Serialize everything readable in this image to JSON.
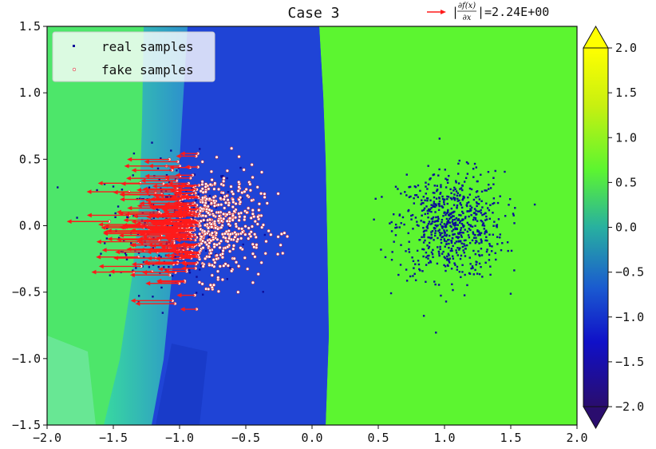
{
  "chart_data": {
    "type": "scatter",
    "title": "Case 3",
    "xlim": [
      -2.0,
      2.0
    ],
    "ylim": [
      -1.5,
      1.5
    ],
    "x_ticks": [
      "−2.0",
      "−1.5",
      "−1.0",
      "−0.5",
      "0.0",
      "0.5",
      "1.0",
      "1.5",
      "2.0"
    ],
    "x_tick_values": [
      -2.0,
      -1.5,
      -1.0,
      -0.5,
      0.0,
      0.5,
      1.0,
      1.5,
      2.0
    ],
    "y_ticks": [
      "−1.5",
      "−1.0",
      "−0.5",
      "0.0",
      "0.5",
      "1.0",
      "1.5"
    ],
    "y_tick_values": [
      -1.5,
      -1.0,
      -0.5,
      0.0,
      0.5,
      1.0,
      1.5
    ],
    "colorbar": {
      "range": [
        -2.0,
        2.0
      ],
      "ticks": [
        "−2.0",
        "−1.5",
        "−1.0",
        "−0.5",
        "0.0",
        "0.5",
        "1.0",
        "1.5",
        "2.0"
      ],
      "tick_values": [
        -2.0,
        -1.5,
        -1.0,
        -0.5,
        0.0,
        0.5,
        1.0,
        1.5,
        2.0
      ],
      "extend": "both",
      "colors": [
        "#2a0d6e",
        "#1010c8",
        "#1a5ad0",
        "#28b0a0",
        "#5cf530",
        "#c8f010",
        "#ffff00"
      ]
    },
    "background_regions": [
      {
        "name": "left-region",
        "value_range": [
          0.0,
          1.0
        ],
        "color": "#4de66a"
      },
      {
        "name": "boundary-band",
        "value_range": [
          -1.2,
          -0.9
        ],
        "color": "#1f44d6"
      },
      {
        "name": "right-region",
        "value": 0.75,
        "color": "#5cf530"
      }
    ],
    "series": [
      {
        "name": "real samples",
        "color": "#0d0d9a",
        "clusters": [
          {
            "center": [
              -1.05,
              0.0
            ],
            "std": 0.25
          },
          {
            "center": [
              1.05,
              0.0
            ],
            "std": 0.2
          }
        ]
      },
      {
        "name": "fake samples",
        "color": "#ffffff",
        "edge_color": "#d03030",
        "clusters": [
          {
            "center": [
              -0.78,
              0.0
            ],
            "std": 0.2
          }
        ]
      }
    ],
    "gradient_arrows": {
      "color": "#ff1a1a",
      "direction": "negative-x",
      "scale_label": "|∂f(x)/∂x|=2.24E+00"
    },
    "legend": {
      "position": "top-left",
      "entries": [
        "real samples",
        "fake samples"
      ]
    },
    "annotation": {
      "prefix": "|",
      "numerator": "∂f(x)",
      "denominator": "∂x",
      "suffix": "|=2.24E+00"
    }
  }
}
